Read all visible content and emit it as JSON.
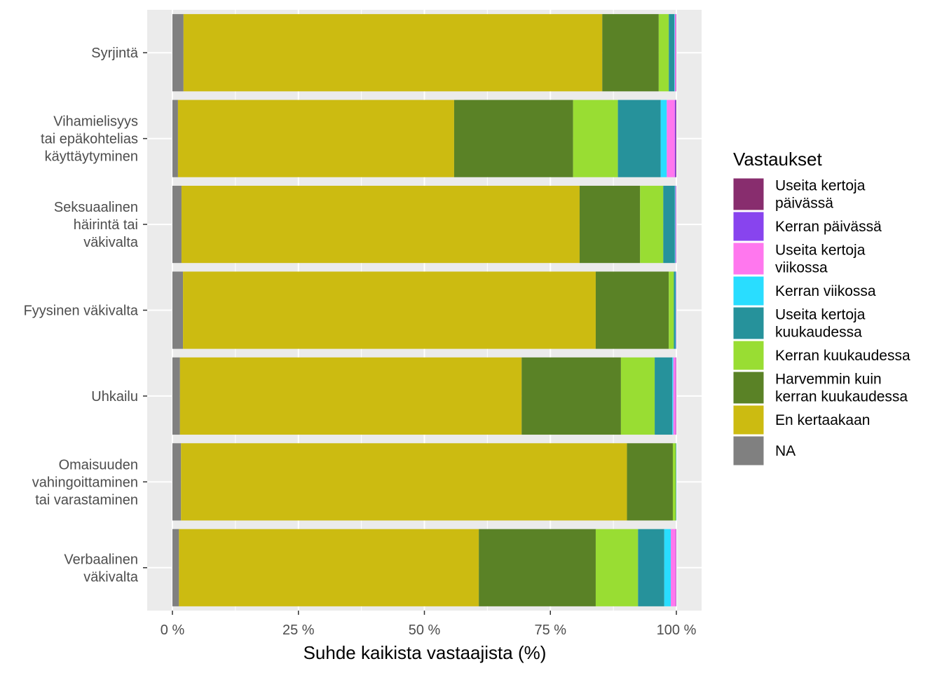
{
  "chart_data": {
    "type": "bar",
    "orientation": "horizontal",
    "stacked": true,
    "xlabel": "Suhde kaikista vastaajista (%)",
    "xlim": [
      0,
      100
    ],
    "xticks": [
      0,
      25,
      50,
      75,
      100
    ],
    "xtick_labels": [
      "0 %",
      "25 %",
      "50 %",
      "75 %",
      "100 %"
    ],
    "grid": true,
    "legend_position": "right",
    "legend_title": "Vastaukset",
    "categories": [
      [
        "Syrjintä"
      ],
      [
        "Vihamielisyys",
        "tai epäkohtelias",
        "käyttäytyminen"
      ],
      [
        "Seksuaalinen",
        "häirintä tai",
        "väkivalta"
      ],
      [
        "Fyysinen väkivalta"
      ],
      [
        "Uhkailu"
      ],
      [
        "Omaisuuden",
        "vahingoittaminen",
        "tai varastaminen"
      ],
      [
        "Verbaalinen",
        "väkivalta"
      ]
    ],
    "series": [
      {
        "name": "NA",
        "color": "#808080",
        "values": [
          2.2,
          1.1,
          1.8,
          2.1,
          1.5,
          1.7,
          1.3
        ]
      },
      {
        "name": "En kertaakaan",
        "color": "#CCBB11",
        "values": [
          83.1,
          54.8,
          79.0,
          81.9,
          67.8,
          88.5,
          59.5
        ]
      },
      {
        "name": "Harvemmin kuin kerran kuukaudessa",
        "color": "#5A8226",
        "values": [
          11.2,
          23.6,
          12.0,
          14.5,
          19.7,
          9.1,
          23.2
        ]
      },
      {
        "name": "Kerran kuukaudessa",
        "color": "#99DD33",
        "values": [
          2.0,
          8.9,
          4.6,
          1.0,
          6.7,
          0.6,
          8.4
        ]
      },
      {
        "name": "Useita kertoja kuukaudessa",
        "color": "#26929B",
        "values": [
          1.1,
          8.5,
          2.3,
          0.3,
          3.5,
          0.1,
          5.2
        ]
      },
      {
        "name": "Kerran viikossa",
        "color": "#29DDFF",
        "values": [
          0.1,
          1.2,
          0.1,
          0.1,
          0.2,
          0.0,
          1.3
        ]
      },
      {
        "name": "Useita kertoja viikossa",
        "color": "#FF77EE",
        "values": [
          0.2,
          1.6,
          0.1,
          0.0,
          0.5,
          0.0,
          1.0
        ]
      },
      {
        "name": "Kerran päivässä",
        "color": "#8844EE",
        "values": [
          0.05,
          0.2,
          0.05,
          0.05,
          0.05,
          0.0,
          0.05
        ]
      },
      {
        "name": "Useita kertoja päivässä",
        "color": "#882D6E",
        "values": [
          0.05,
          0.1,
          0.05,
          0.05,
          0.05,
          0.0,
          0.05
        ]
      }
    ],
    "legend_items": [
      {
        "label": [
          "Useita kertoja",
          "päivässä"
        ],
        "color": "#882D6E"
      },
      {
        "label": [
          "Kerran päivässä"
        ],
        "color": "#8844EE"
      },
      {
        "label": [
          "Useita kertoja",
          "viikossa"
        ],
        "color": "#FF77EE"
      },
      {
        "label": [
          "Kerran viikossa"
        ],
        "color": "#29DDFF"
      },
      {
        "label": [
          "Useita kertoja",
          "kuukaudessa"
        ],
        "color": "#26929B"
      },
      {
        "label": [
          "Kerran kuukaudessa"
        ],
        "color": "#99DD33"
      },
      {
        "label": [
          "Harvemmin kuin",
          "kerran kuukaudessa"
        ],
        "color": "#5A8226"
      },
      {
        "label": [
          "En kertaakaan"
        ],
        "color": "#CCBB11"
      },
      {
        "label": [
          "NA"
        ],
        "color": "#808080"
      }
    ]
  }
}
